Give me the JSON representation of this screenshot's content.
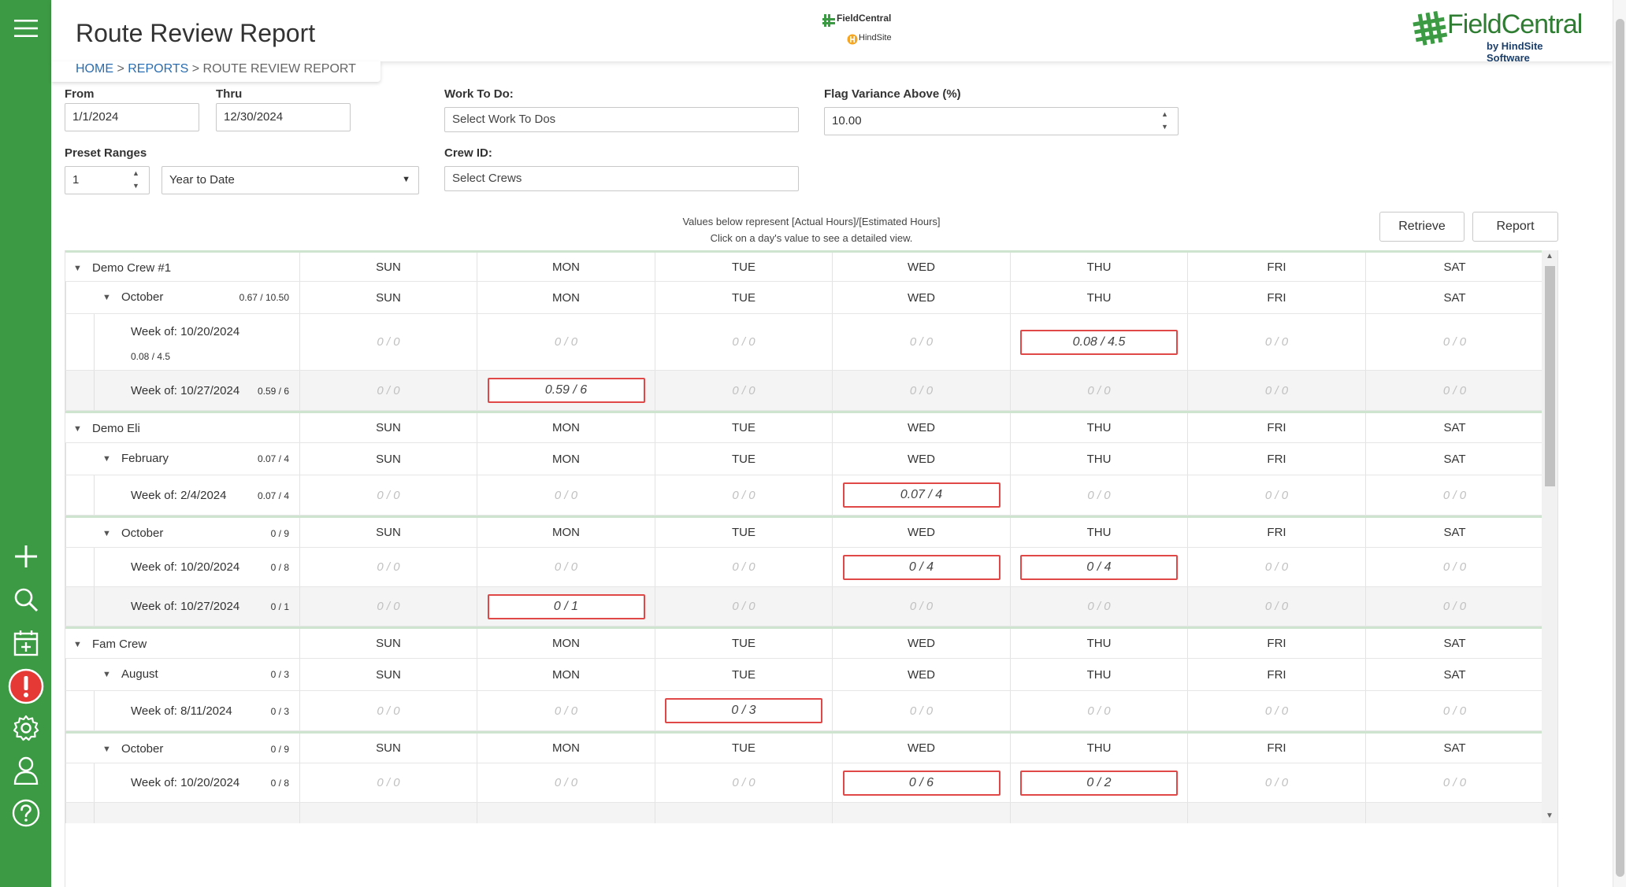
{
  "header": {
    "title": "Route Review Report",
    "center_logo": {
      "line1": "FieldCentral",
      "line2": "HindSite"
    },
    "brand": {
      "name": "FieldCentral",
      "tagline": "by HindSite Software"
    }
  },
  "breadcrumb": {
    "home": "HOME",
    "sep": " > ",
    "reports": "REPORTS",
    "current": "ROUTE REVIEW REPORT"
  },
  "sidebar": {
    "icons": [
      "menu-icon",
      "plus-icon",
      "search-icon",
      "calendar-add-icon",
      "alert-icon",
      "gear-icon",
      "user-icon",
      "help-icon"
    ],
    "alert_color": "#e53935",
    "bg_color": "#3d9a44"
  },
  "filters": {
    "from_label": "From",
    "from_value": "1/1/2024",
    "thru_label": "Thru",
    "thru_value": "12/30/2024",
    "work_label": "Work To Do:",
    "work_placeholder": "Select Work To Dos",
    "flag_label": "Flag Variance Above (%)",
    "flag_value": "10.00",
    "preset_label": "Preset Ranges",
    "preset_num": "1",
    "preset_range": "Year to Date",
    "crew_label": "Crew ID:",
    "crew_placeholder": "Select Crews"
  },
  "note": {
    "line1": "Values below represent [Actual Hours]/[Estimated Hours]",
    "line2": "Click on a day's value to see a detailed view."
  },
  "buttons": {
    "retrieve": "Retrieve",
    "report": "Report"
  },
  "days": [
    "SUN",
    "MON",
    "TUE",
    "WED",
    "THU",
    "FRI",
    "SAT"
  ],
  "zero_value": "0 / 0",
  "flag_color": "#e04848",
  "rows": [
    {
      "type": "crew",
      "name": "Demo Crew #1"
    },
    {
      "type": "month",
      "name": "October",
      "sum": "0.67 / 10.50"
    },
    {
      "type": "week",
      "name": "Week of: 10/20/2024",
      "sum": "0.08 / 4.5",
      "flags": {
        "4": "0.08 / 4.5"
      }
    },
    {
      "type": "week",
      "name": "Week of: 10/27/2024",
      "sum": "0.59 / 6",
      "flags": {
        "1": "0.59 / 6"
      }
    },
    {
      "type": "crew",
      "name": "Demo Eli"
    },
    {
      "type": "month",
      "name": "February",
      "sum": "0.07 / 4"
    },
    {
      "type": "week",
      "name": "Week of: 2/4/2024",
      "sum": "0.07 / 4",
      "flags": {
        "3": "0.07 / 4"
      }
    },
    {
      "type": "month",
      "name": "October",
      "sum": "0 / 9"
    },
    {
      "type": "week",
      "name": "Week of: 10/20/2024",
      "sum": "0 / 8",
      "flags": {
        "3": "0 / 4",
        "4": "0 / 4"
      }
    },
    {
      "type": "week",
      "name": "Week of: 10/27/2024",
      "sum": "0 / 1",
      "flags": {
        "1": "0 / 1"
      }
    },
    {
      "type": "crew",
      "name": "Fam Crew"
    },
    {
      "type": "month",
      "name": "August",
      "sum": "0 / 3"
    },
    {
      "type": "week",
      "name": "Week of: 8/11/2024",
      "sum": "0 / 3",
      "flags": {
        "2": "0 / 3"
      }
    },
    {
      "type": "month",
      "name": "October",
      "sum": "0 / 9"
    },
    {
      "type": "week",
      "name": "Week of: 10/20/2024",
      "sum": "0 / 8",
      "flags": {
        "3": "0 / 6",
        "4": "0 / 2"
      }
    },
    {
      "type": "week",
      "name": "",
      "sum": "",
      "flags": {
        "1": ""
      }
    }
  ]
}
